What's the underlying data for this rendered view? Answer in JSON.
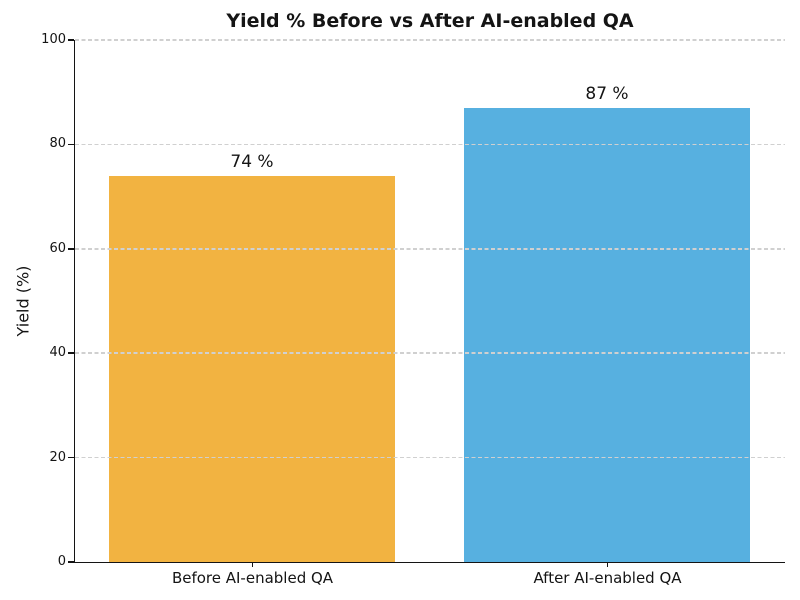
{
  "chart_data": {
    "type": "bar",
    "title": "Yield % Before vs After AI-enabled QA",
    "categories": [
      "Before AI-enabled QA",
      "After AI-enabled QA"
    ],
    "values": [
      74,
      87
    ],
    "value_labels": [
      "74 %",
      "87 %"
    ],
    "bar_colors": [
      "#F2B341",
      "#57B0E0"
    ],
    "xlabel": "",
    "ylabel": "Yield (%)",
    "ylim": [
      0,
      100
    ],
    "yticks": [
      0,
      20,
      40,
      60,
      80,
      100
    ],
    "grid": "horizontal-dashed",
    "grid_color": "#d0d0d0",
    "legend": "none",
    "background": "#ffffff"
  }
}
